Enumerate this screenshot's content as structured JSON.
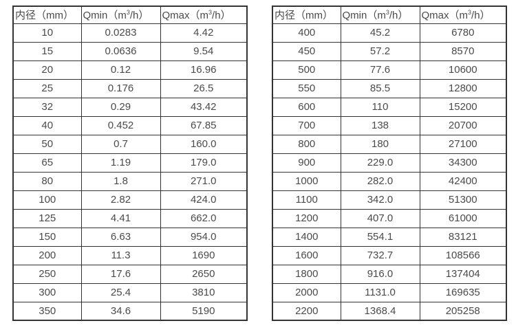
{
  "colors": {
    "background": "#ffffff",
    "border": "#333333",
    "text": "#4a4a4a"
  },
  "tables": [
    {
      "name": "flow-table-small-diameters",
      "headers": [
        {
          "pre": "内径（mm）",
          "sup": "",
          "post": ""
        },
        {
          "pre": "Qmin（m",
          "sup": "3",
          "post": "/h）"
        },
        {
          "pre": "Qmax（m",
          "sup": "3",
          "post": "/h）"
        }
      ],
      "rows": [
        [
          "10",
          "0.0283",
          "4.42"
        ],
        [
          "15",
          "0.0636",
          "9.54"
        ],
        [
          "20",
          "0.12",
          "16.96"
        ],
        [
          "25",
          "0.176",
          "26.5"
        ],
        [
          "32",
          "0.29",
          "43.42"
        ],
        [
          "40",
          "0.452",
          "67.85"
        ],
        [
          "50",
          "0.7",
          "160.0"
        ],
        [
          "65",
          "1.19",
          "179.0"
        ],
        [
          "80",
          "1.8",
          "271.0"
        ],
        [
          "100",
          "2.82",
          "424.0"
        ],
        [
          "125",
          "4.41",
          "662.0"
        ],
        [
          "150",
          "6.63",
          "954.0"
        ],
        [
          "200",
          "11.3",
          "1690"
        ],
        [
          "250",
          "17.6",
          "2650"
        ],
        [
          "300",
          "25.4",
          "3810"
        ],
        [
          "350",
          "34.6",
          "5190"
        ]
      ]
    },
    {
      "name": "flow-table-large-diameters",
      "headers": [
        {
          "pre": "内径（mm）",
          "sup": "",
          "post": ""
        },
        {
          "pre": "Qmin（m",
          "sup": "3",
          "post": "/h）"
        },
        {
          "pre": "Qmax（m",
          "sup": "3",
          "post": "/h）"
        }
      ],
      "rows": [
        [
          "400",
          "45.2",
          "6780"
        ],
        [
          "450",
          "57.2",
          "8570"
        ],
        [
          "500",
          "77.6",
          "10600"
        ],
        [
          "550",
          "85.5",
          "12800"
        ],
        [
          "600",
          "110",
          "15200"
        ],
        [
          "700",
          "138",
          "20700"
        ],
        [
          "800",
          "180",
          "27100"
        ],
        [
          "900",
          "229.0",
          "34300"
        ],
        [
          "1000",
          "282.0",
          "42400"
        ],
        [
          "1100",
          "342.0",
          "51300"
        ],
        [
          "1200",
          "407.0",
          "61000"
        ],
        [
          "1400",
          "554.1",
          "83121"
        ],
        [
          "1600",
          "732.7",
          "108566"
        ],
        [
          "1800",
          "916.0",
          "137404"
        ],
        [
          "2000",
          "1131.0",
          "169635"
        ],
        [
          "2200",
          "1368.4",
          "205258"
        ]
      ]
    }
  ]
}
